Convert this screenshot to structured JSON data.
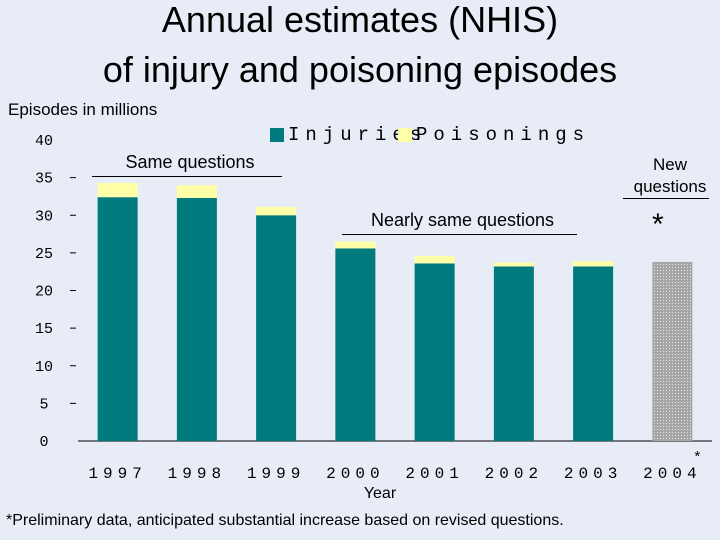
{
  "title_line1": "Annual estimates (NHIS)",
  "title_line2": "of injury and poisoning episodes",
  "footnote": "*Preliminary data, anticipated substantial increase based on revised questions.",
  "annotations": {
    "same_questions": "Same questions",
    "nearly_same_questions": "Nearly same questions",
    "new_questions_line1": "New",
    "new_questions_line2": "questions",
    "star": "*",
    "footnote_marker": "*"
  },
  "colors": {
    "injuries": "#007a7c",
    "poisonings": "#ffffa8",
    "preliminary": "#a6a6a6",
    "background": "#e8ecf6"
  },
  "chart_data": {
    "type": "bar",
    "stacked": true,
    "title": "Annual estimates (NHIS) of injury and poisoning episodes",
    "xlabel": "Year",
    "ylabel": "Episodes in millions",
    "ylim": [
      0,
      40
    ],
    "yticks": [
      0,
      5,
      10,
      15,
      20,
      25,
      30,
      35,
      40
    ],
    "categories": [
      "1997",
      "1998",
      "1999",
      "2000",
      "2001",
      "2002",
      "2003",
      "2004"
    ],
    "category_marks": [
      "",
      "",
      "",
      "",
      "",
      "",
      "",
      "*"
    ],
    "series": [
      {
        "name": "Injuries",
        "values": [
          32.4,
          32.3,
          30.0,
          25.6,
          23.6,
          23.2,
          23.2,
          null
        ]
      },
      {
        "name": "Poisonings",
        "values": [
          1.9,
          1.7,
          1.1,
          0.9,
          1.0,
          0.5,
          0.7,
          null
        ]
      }
    ],
    "preliminary": {
      "category": "2004",
      "value": 23.8,
      "fill": "dotted-gray"
    },
    "legend_position": "top",
    "grid": false
  }
}
